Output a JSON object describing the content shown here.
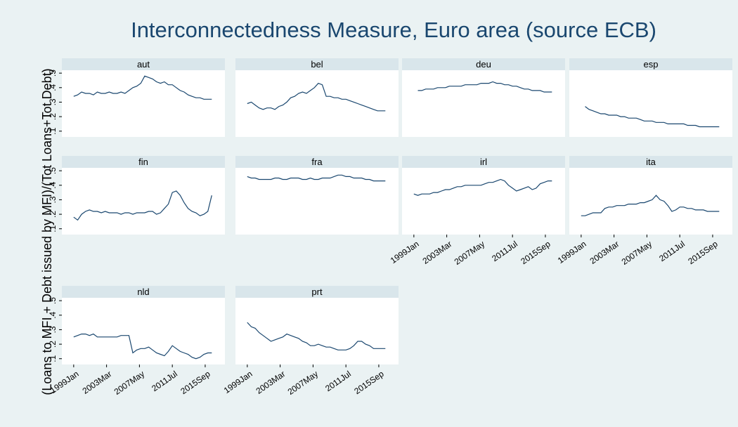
{
  "title": "Interconnectedness Measure, Euro area (source ECB)",
  "y_label": "(Loans to MFI + Debt issued by MFI)/(Tot Loans+Tot Debt)",
  "x": [
    "1999Jan",
    "1999Jul",
    "2000Jan",
    "2000Jul",
    "2001Jan",
    "2001Jul",
    "2002Jan",
    "2002Jul",
    "2003Jan",
    "2003Jul",
    "2004Jan",
    "2004Jul",
    "2005Jan",
    "2005Jul",
    "2006Jan",
    "2006Jul",
    "2007Jan",
    "2007Jul",
    "2008Jan",
    "2008Jul",
    "2009Jan",
    "2009Jul",
    "2010Jan",
    "2010Jul",
    "2011Jan",
    "2011Jul",
    "2012Jan",
    "2012Jul",
    "2013Jan",
    "2013Jul",
    "2014Jan",
    "2014Jul",
    "2015Jan",
    "2015Jul",
    "2016Jan",
    "2016Jul"
  ],
  "xlim": [
    "1997Jul",
    "2018Mar"
  ],
  "xticks": [
    "1999Jan",
    "2003Mar",
    "2007May",
    "2011Jul",
    "2015Sep"
  ],
  "ylim": [
    0.06,
    0.52
  ],
  "yticks": [
    {
      "value": 0.1,
      "label": ".1"
    },
    {
      "value": 0.2,
      "label": ".2"
    },
    {
      "value": 0.3,
      "label": ".3"
    },
    {
      "value": 0.4,
      "label": ".4"
    },
    {
      "value": 0.5,
      "label": ".5"
    }
  ],
  "color": "#1a476f",
  "chart_data": [
    {
      "type": "line",
      "title": "aut",
      "values": [
        0.34,
        0.35,
        0.37,
        0.36,
        0.36,
        0.35,
        0.37,
        0.36,
        0.36,
        0.37,
        0.36,
        0.36,
        0.37,
        0.36,
        0.38,
        0.4,
        0.41,
        0.43,
        0.48,
        0.47,
        0.46,
        0.44,
        0.43,
        0.44,
        0.42,
        0.42,
        0.4,
        0.38,
        0.37,
        0.35,
        0.34,
        0.33,
        0.33,
        0.32,
        0.32,
        0.32
      ]
    },
    {
      "type": "line",
      "title": "bel",
      "values": [
        0.29,
        0.3,
        0.28,
        0.26,
        0.25,
        0.26,
        0.26,
        0.25,
        0.27,
        0.28,
        0.3,
        0.33,
        0.34,
        0.36,
        0.37,
        0.36,
        0.38,
        0.4,
        0.43,
        0.42,
        0.34,
        0.34,
        0.33,
        0.33,
        0.32,
        0.32,
        0.31,
        0.3,
        0.29,
        0.28,
        0.27,
        0.26,
        0.25,
        0.24,
        0.24,
        0.24
      ]
    },
    {
      "type": "line",
      "title": "deu",
      "values": [
        null,
        0.38,
        0.38,
        0.39,
        0.39,
        0.39,
        0.4,
        0.4,
        0.4,
        0.41,
        0.41,
        0.41,
        0.41,
        0.42,
        0.42,
        0.42,
        0.42,
        0.43,
        0.43,
        0.43,
        0.44,
        0.43,
        0.43,
        0.42,
        0.42,
        0.41,
        0.41,
        0.4,
        0.39,
        0.39,
        0.38,
        0.38,
        0.38,
        0.37,
        0.37,
        0.37
      ]
    },
    {
      "type": "line",
      "title": "esp",
      "values": [
        null,
        0.27,
        0.25,
        0.24,
        0.23,
        0.22,
        0.22,
        0.21,
        0.21,
        0.21,
        0.2,
        0.2,
        0.19,
        0.19,
        0.19,
        0.18,
        0.17,
        0.17,
        0.17,
        0.16,
        0.16,
        0.16,
        0.15,
        0.15,
        0.15,
        0.15,
        0.15,
        0.14,
        0.14,
        0.14,
        0.13,
        0.13,
        0.13,
        0.13,
        0.13,
        0.13
      ]
    },
    {
      "type": "line",
      "title": "fin",
      "values": [
        0.18,
        0.16,
        0.2,
        0.22,
        0.23,
        0.22,
        0.22,
        0.21,
        0.22,
        0.21,
        0.21,
        0.21,
        0.2,
        0.21,
        0.21,
        0.2,
        0.21,
        0.21,
        0.21,
        0.22,
        0.22,
        0.2,
        0.21,
        0.24,
        0.27,
        0.35,
        0.36,
        0.33,
        0.28,
        0.24,
        0.22,
        0.21,
        0.19,
        0.2,
        0.22,
        0.33
      ]
    },
    {
      "type": "line",
      "title": "fra",
      "values": [
        0.46,
        0.45,
        0.45,
        0.44,
        0.44,
        0.44,
        0.44,
        0.45,
        0.45,
        0.44,
        0.44,
        0.45,
        0.45,
        0.45,
        0.44,
        0.44,
        0.45,
        0.44,
        0.44,
        0.45,
        0.45,
        0.45,
        0.46,
        0.47,
        0.47,
        0.46,
        0.46,
        0.45,
        0.45,
        0.45,
        0.44,
        0.44,
        0.43,
        0.43,
        0.43,
        0.43
      ]
    },
    {
      "type": "line",
      "title": "irl",
      "values": [
        0.34,
        0.33,
        0.34,
        0.34,
        0.34,
        0.35,
        0.35,
        0.36,
        0.37,
        0.37,
        0.38,
        0.39,
        0.39,
        0.4,
        0.4,
        0.4,
        0.4,
        0.4,
        0.41,
        0.42,
        0.42,
        0.43,
        0.44,
        0.43,
        0.4,
        0.38,
        0.36,
        0.37,
        0.38,
        0.39,
        0.37,
        0.38,
        0.41,
        0.42,
        0.43,
        0.43
      ]
    },
    {
      "type": "line",
      "title": "ita",
      "values": [
        0.19,
        0.19,
        0.2,
        0.21,
        0.21,
        0.21,
        0.24,
        0.25,
        0.25,
        0.26,
        0.26,
        0.26,
        0.27,
        0.27,
        0.27,
        0.28,
        0.28,
        0.29,
        0.3,
        0.33,
        0.3,
        0.29,
        0.26,
        0.22,
        0.23,
        0.25,
        0.25,
        0.24,
        0.24,
        0.23,
        0.23,
        0.23,
        0.22,
        0.22,
        0.22,
        0.22
      ]
    },
    {
      "type": "line",
      "title": "nld",
      "values": [
        0.25,
        0.26,
        0.27,
        0.27,
        0.26,
        0.27,
        0.25,
        0.25,
        0.25,
        0.25,
        0.25,
        0.25,
        0.26,
        0.26,
        0.26,
        0.14,
        0.16,
        0.17,
        0.17,
        0.18,
        0.16,
        0.14,
        0.13,
        0.12,
        0.15,
        0.19,
        0.17,
        0.15,
        0.14,
        0.13,
        0.11,
        0.1,
        0.11,
        0.13,
        0.14,
        0.14
      ]
    },
    {
      "type": "line",
      "title": "prt",
      "values": [
        0.35,
        0.32,
        0.31,
        0.28,
        0.26,
        0.24,
        0.22,
        0.23,
        0.24,
        0.25,
        0.27,
        0.26,
        0.25,
        0.24,
        0.22,
        0.21,
        0.19,
        0.19,
        0.2,
        0.19,
        0.18,
        0.18,
        0.17,
        0.16,
        0.16,
        0.16,
        0.17,
        0.19,
        0.22,
        0.22,
        0.2,
        0.19,
        0.17,
        0.17,
        0.17,
        0.17
      ]
    }
  ]
}
